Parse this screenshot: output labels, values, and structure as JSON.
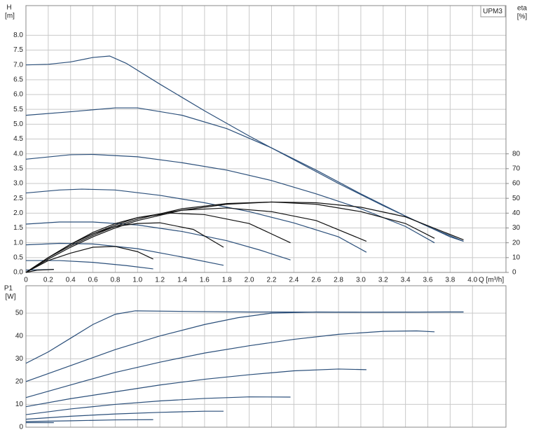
{
  "chart_data": [
    {
      "type": "line",
      "label": "UPM3",
      "y_label": "H",
      "y_unit": "[m]",
      "y2_label": "eta",
      "y2_unit": "[%]",
      "x_label": "Q [m³/h]",
      "grid": true,
      "xlim": [
        0,
        4.3
      ],
      "xticks": [
        0,
        0.2,
        0.4,
        0.6,
        0.8,
        {
          "value": 1,
          "label": "1.0"
        },
        1.2,
        1.4,
        1.6,
        1.8,
        {
          "value": 2,
          "label": "2.0"
        },
        2.2,
        2.4,
        2.6,
        2.8,
        {
          "value": 3,
          "label": "3.0"
        },
        3.2,
        3.4,
        3.6,
        3.8,
        {
          "value": 4,
          "label": "4.0"
        }
      ],
      "ylim": [
        0,
        9
      ],
      "yticks": [
        {
          "value": 0,
          "label": "0.0"
        },
        0.5,
        {
          "value": 1,
          "label": "1.0"
        },
        1.5,
        {
          "value": 2,
          "label": "2.0"
        },
        2.5,
        {
          "value": 3,
          "label": "3.0"
        },
        3.5,
        {
          "value": 4,
          "label": "4.0"
        },
        4.5,
        {
          "value": 5,
          "label": "5.0"
        },
        5.5,
        {
          "value": 6,
          "label": "6.0"
        },
        6.5,
        {
          "value": 7,
          "label": "7.0"
        },
        7.5,
        {
          "value": 8,
          "label": "8.0"
        }
      ],
      "y2lim": [
        0,
        180
      ],
      "y2ticks": [
        0,
        10,
        20,
        30,
        40,
        50,
        60,
        70,
        80
      ],
      "series": [
        {
          "color": "#2b4f7a",
          "x": [
            0,
            0.2,
            0.4,
            0.6,
            0.75,
            0.9,
            1.2,
            1.6,
            2.0,
            2.4,
            2.8,
            3.2,
            3.6,
            3.92
          ],
          "values": [
            7.0,
            7.02,
            7.1,
            7.25,
            7.3,
            7.05,
            6.35,
            5.45,
            4.6,
            3.8,
            3.0,
            2.25,
            1.55,
            1.05
          ]
        },
        {
          "color": "#2b4f7a",
          "x": [
            0,
            0.4,
            0.8,
            1.0,
            1.4,
            1.8,
            2.2,
            2.6,
            3.0,
            3.4,
            3.8,
            3.92
          ],
          "values": [
            5.3,
            5.42,
            5.55,
            5.55,
            5.3,
            4.85,
            4.2,
            3.45,
            2.65,
            1.9,
            1.2,
            1.05
          ]
        },
        {
          "color": "#2b4f7a",
          "x": [
            0,
            0.4,
            0.6,
            1.0,
            1.4,
            1.8,
            2.2,
            2.6,
            3.0,
            3.4,
            3.66
          ],
          "values": [
            3.82,
            3.97,
            3.98,
            3.9,
            3.7,
            3.45,
            3.1,
            2.65,
            2.15,
            1.55,
            1.0
          ]
        },
        {
          "color": "#2b4f7a",
          "x": [
            0,
            0.3,
            0.5,
            0.8,
            1.2,
            1.6,
            2.0,
            2.4,
            2.8,
            3.05
          ],
          "values": [
            2.68,
            2.78,
            2.81,
            2.78,
            2.6,
            2.35,
            2.05,
            1.67,
            1.2,
            0.68
          ]
        },
        {
          "color": "#2b4f7a",
          "x": [
            0,
            0.3,
            0.6,
            1.0,
            1.4,
            1.8,
            2.1,
            2.37
          ],
          "values": [
            1.63,
            1.7,
            1.7,
            1.6,
            1.38,
            1.07,
            0.75,
            0.42
          ]
        },
        {
          "color": "#2b4f7a",
          "x": [
            0,
            0.3,
            0.6,
            1.0,
            1.4,
            1.77
          ],
          "values": [
            0.93,
            0.98,
            0.96,
            0.8,
            0.52,
            0.24
          ]
        },
        {
          "color": "#2b4f7a",
          "x": [
            0,
            0.3,
            0.6,
            0.9,
            1.14
          ],
          "values": [
            0.4,
            0.4,
            0.34,
            0.23,
            0.12
          ]
        },
        {
          "color": "#2b4f7a",
          "x": [
            0,
            0.25
          ],
          "values": [
            0.08,
            0.1
          ]
        },
        {
          "color": "#111111",
          "axis": "y2",
          "x": [
            0,
            0.2,
            0.4,
            0.6,
            0.8,
            1.0,
            1.4,
            1.8,
            2.2,
            2.6,
            3.0,
            3.4,
            3.92
          ],
          "values": [
            0,
            9,
            17,
            24,
            30,
            35,
            42,
            46,
            47.5,
            47,
            44,
            37.5,
            22
          ]
        },
        {
          "color": "#111111",
          "axis": "y2",
          "x": [
            0,
            0.2,
            0.4,
            0.6,
            0.8,
            1.0,
            1.4,
            1.8,
            2.2,
            2.6,
            3.0,
            3.4,
            3.66
          ],
          "values": [
            0,
            10,
            18,
            25,
            31,
            36,
            43,
            46.5,
            47.5,
            46,
            41,
            33,
            23
          ]
        },
        {
          "color": "#111111",
          "axis": "y2",
          "x": [
            0,
            0.2,
            0.4,
            0.6,
            0.8,
            1.0,
            1.4,
            1.8,
            2.2,
            2.6,
            3.05
          ],
          "values": [
            0,
            10,
            19,
            26,
            32,
            37,
            42,
            43.5,
            41,
            35,
            21
          ]
        },
        {
          "color": "#111111",
          "axis": "y2",
          "x": [
            0,
            0.2,
            0.4,
            0.6,
            0.8,
            1.0,
            1.3,
            1.6,
            2.0,
            2.37
          ],
          "values": [
            0,
            10,
            19,
            27,
            33,
            37,
            40,
            39,
            33,
            20
          ]
        },
        {
          "color": "#111111",
          "axis": "y2",
          "x": [
            0,
            0.2,
            0.4,
            0.6,
            0.8,
            1.0,
            1.2,
            1.5,
            1.77
          ],
          "values": [
            0,
            10,
            19,
            26,
            31,
            33,
            33.5,
            29,
            17
          ]
        },
        {
          "color": "#111111",
          "axis": "y2",
          "x": [
            0,
            0.2,
            0.4,
            0.6,
            0.8,
            1.0,
            1.14
          ],
          "values": [
            0,
            8,
            13,
            17,
            17.5,
            14,
            9
          ]
        },
        {
          "color": "#111111",
          "axis": "y2",
          "x": [
            0,
            0.1,
            0.25
          ],
          "values": [
            0,
            1.5,
            2
          ]
        }
      ]
    },
    {
      "type": "line",
      "y_label": "P1",
      "y_unit": "[W]",
      "grid": true,
      "xlim": [
        0,
        4.3
      ],
      "ylim": [
        0,
        62
      ],
      "yticks": [
        0,
        10,
        20,
        30,
        40,
        50
      ],
      "series": [
        {
          "color": "#2b4f7a",
          "x": [
            0,
            0.2,
            0.4,
            0.6,
            0.8,
            0.98,
            1.5,
            2.0,
            3.0,
            3.92
          ],
          "values": [
            28,
            33,
            39,
            45,
            49.5,
            51,
            50.7,
            50.5,
            50.4,
            50.5
          ]
        },
        {
          "color": "#2b4f7a",
          "x": [
            0,
            0.4,
            0.8,
            1.2,
            1.6,
            1.9,
            2.2,
            2.6,
            3.0,
            3.92
          ],
          "values": [
            20,
            27,
            34,
            40,
            45,
            48,
            50,
            50.5,
            50.4,
            50.5
          ]
        },
        {
          "color": "#2b4f7a",
          "x": [
            0,
            0.4,
            0.8,
            1.2,
            1.6,
            2.0,
            2.4,
            2.8,
            3.2,
            3.5,
            3.66
          ],
          "values": [
            13,
            18.5,
            24,
            28.5,
            32.5,
            35.7,
            38.5,
            40.7,
            42,
            42.2,
            41.8
          ]
        },
        {
          "color": "#2b4f7a",
          "x": [
            0,
            0.4,
            0.8,
            1.2,
            1.6,
            2.0,
            2.4,
            2.8,
            3.05
          ],
          "values": [
            9,
            12.5,
            15.5,
            18.5,
            21,
            23,
            24.7,
            25.5,
            25.2
          ]
        },
        {
          "color": "#2b4f7a",
          "x": [
            0,
            0.4,
            0.8,
            1.2,
            1.6,
            2.0,
            2.37
          ],
          "values": [
            5.5,
            8,
            10,
            11.5,
            12.6,
            13.3,
            13.2
          ]
        },
        {
          "color": "#2b4f7a",
          "x": [
            0,
            0.4,
            0.8,
            1.2,
            1.6,
            1.77
          ],
          "values": [
            3.5,
            4.8,
            5.8,
            6.5,
            7,
            7
          ]
        },
        {
          "color": "#2b4f7a",
          "x": [
            0,
            0.4,
            0.8,
            1.14
          ],
          "values": [
            2.5,
            2.8,
            3.2,
            3.3
          ]
        },
        {
          "color": "#2b4f7a",
          "x": [
            0,
            0.25
          ],
          "values": [
            2,
            2
          ]
        }
      ]
    }
  ]
}
